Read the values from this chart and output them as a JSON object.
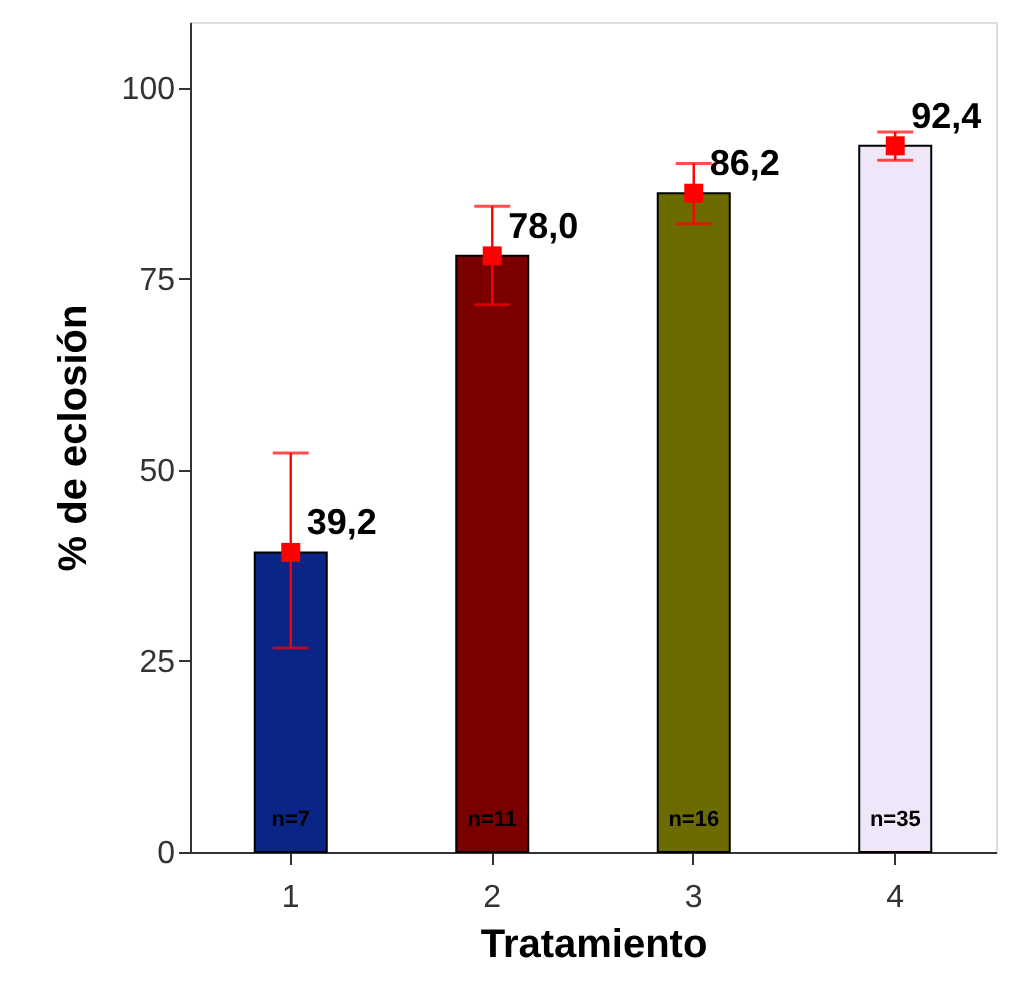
{
  "chart_data": {
    "type": "bar",
    "xlabel": "Tratamiento",
    "ylabel": "% de eclosión",
    "categories": [
      "1",
      "2",
      "3",
      "4"
    ],
    "series": [
      {
        "colors": [
          "#0a2585",
          "#7a0000",
          "#6b6b00",
          "#f0e6fa"
        ],
        "values": [
          39.2,
          78.0,
          86.2,
          92.4
        ]
      },
      {
        "type": "scatter",
        "color": "#ff0000",
        "marker": "square",
        "values": [
          39.2,
          78.0,
          86.2,
          92.4
        ],
        "errors": [
          [
            26.7,
            52.2
          ],
          [
            71.6,
            84.5
          ],
          [
            82.2,
            90.1
          ],
          [
            90.5,
            94.2
          ]
        ],
        "value_labels": [
          "39,2",
          "78,0",
          "86,2",
          "92,4"
        ]
      }
    ],
    "ylim": [
      0,
      108.6
    ],
    "yticks": [
      0,
      25,
      50,
      75,
      100
    ],
    "grid": false,
    "annotations": [
      "n=7",
      "n=11",
      "n=16",
      "n=35"
    ]
  }
}
